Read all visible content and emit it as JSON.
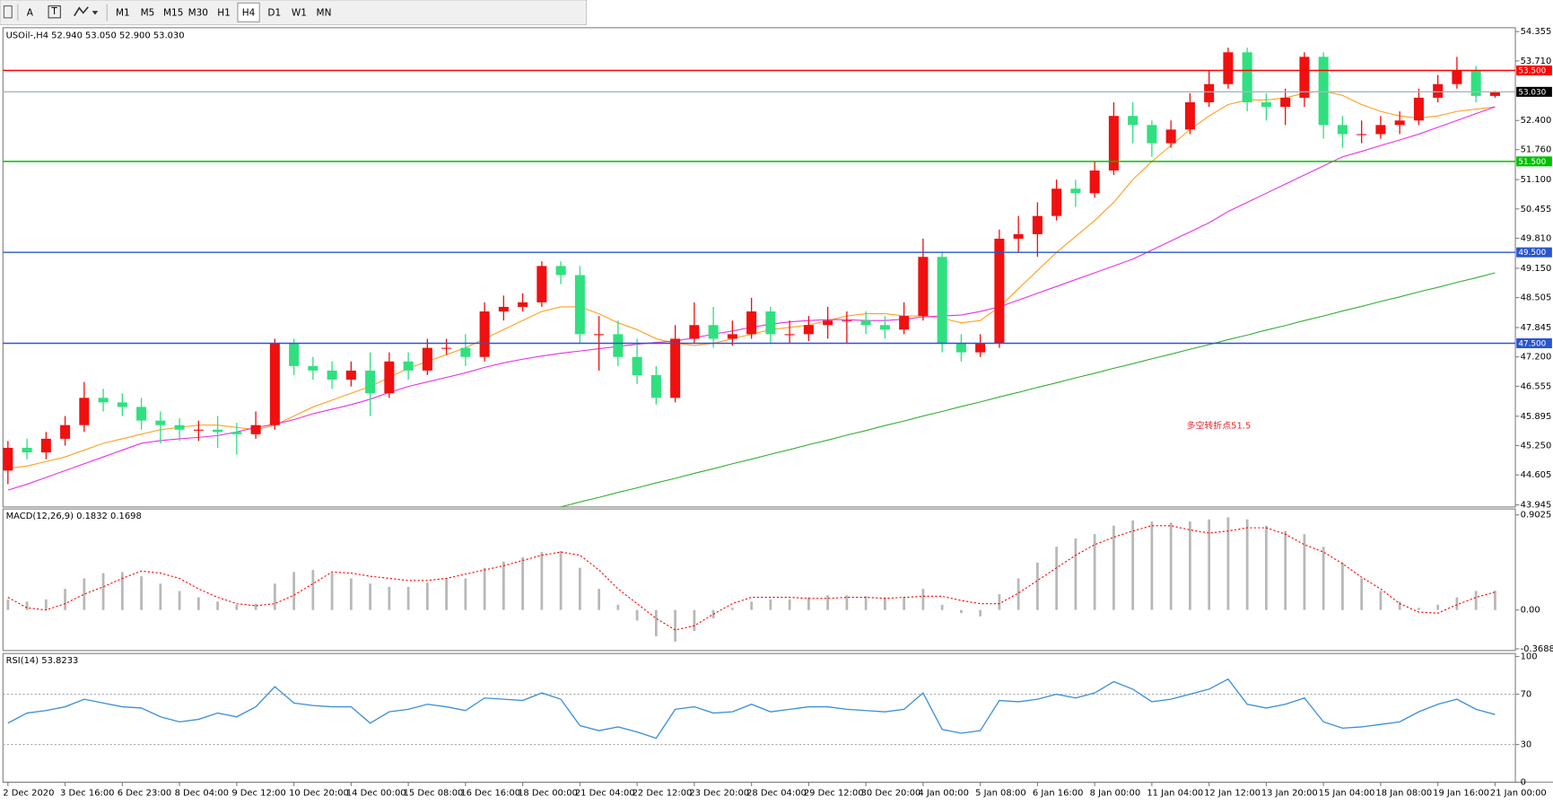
{
  "toolbar": {
    "periods": [
      "M1",
      "M5",
      "M15",
      "M30",
      "H1",
      "H4",
      "D1",
      "W1",
      "MN"
    ],
    "active": "H4"
  },
  "chart_data": {
    "type": "candlestick",
    "header": {
      "symbol": "USOil-,H4",
      "ohlc_labels": [
        "52.940",
        "53.050",
        "52.900",
        "53.030"
      ]
    },
    "categories": [
      "2 Dec 2020",
      null,
      null,
      "3 Dec 16:00",
      null,
      null,
      "6 Dec 23:00",
      null,
      null,
      "8 Dec 04:00",
      null,
      null,
      "9 Dec 12:00",
      null,
      null,
      "10 Dec 20:00",
      null,
      null,
      "14 Dec 00:00",
      null,
      null,
      "15 Dec 08:00",
      null,
      null,
      "16 Dec 16:00",
      null,
      null,
      "18 Dec 00:00",
      null,
      null,
      "21 Dec 04:00",
      null,
      null,
      "22 Dec 12:00",
      null,
      null,
      "23 Dec 20:00",
      null,
      null,
      "28 Dec 04:00",
      null,
      null,
      "29 Dec 12:00",
      null,
      null,
      "30 Dec 20:00",
      null,
      null,
      "4 Jan 00:00",
      null,
      null,
      "5 Jan 08:00",
      null,
      null,
      "6 Jan 16:00",
      null,
      null,
      "8 Jan 00:00",
      null,
      null,
      "11 Jan 04:00",
      null,
      null,
      "12 Jan 12:00",
      null,
      null,
      "13 Jan 20:00",
      null,
      null,
      "15 Jan 04:00",
      null,
      null,
      "18 Jan 08:00",
      null,
      null,
      "19 Jan 16:00",
      null,
      null,
      "21 Jan 00:00"
    ],
    "open": [
      44.7,
      45.2,
      45.1,
      45.4,
      45.7,
      46.3,
      46.2,
      46.1,
      45.8,
      45.7,
      45.6,
      45.6,
      45.55,
      45.5,
      45.7,
      47.5,
      47.0,
      46.9,
      46.7,
      46.9,
      46.4,
      47.1,
      46.9,
      47.4,
      47.4,
      47.2,
      48.2,
      48.3,
      48.4,
      49.2,
      49.0,
      47.7,
      47.7,
      47.2,
      46.8,
      46.3,
      47.6,
      47.9,
      47.6,
      47.7,
      48.2,
      47.7,
      47.7,
      47.9,
      48.0,
      48.0,
      47.9,
      47.8,
      48.1,
      49.4,
      47.5,
      47.3,
      47.5,
      49.8,
      49.9,
      50.3,
      50.9,
      50.8,
      51.3,
      52.5,
      52.3,
      51.9,
      52.2,
      52.8,
      53.2,
      53.9,
      52.8,
      52.7,
      52.9,
      53.8,
      52.3,
      52.1,
      52.1,
      52.3,
      52.4,
      52.9,
      53.2,
      53.5,
      52.94
    ],
    "high": [
      45.35,
      45.4,
      45.55,
      45.9,
      46.65,
      46.5,
      46.4,
      46.3,
      46.0,
      45.85,
      45.8,
      45.9,
      45.75,
      46.0,
      47.6,
      47.6,
      47.2,
      47.1,
      47.1,
      47.3,
      47.3,
      47.3,
      47.6,
      47.6,
      47.7,
      48.4,
      48.55,
      48.6,
      49.3,
      49.3,
      49.2,
      48.1,
      48.0,
      47.6,
      47.0,
      47.9,
      48.4,
      48.3,
      48.0,
      48.5,
      48.3,
      48.0,
      48.1,
      48.3,
      48.2,
      48.2,
      48.1,
      48.4,
      49.8,
      49.5,
      47.7,
      47.7,
      50.0,
      50.3,
      50.6,
      51.1,
      51.1,
      51.5,
      52.8,
      52.8,
      52.4,
      52.4,
      53.0,
      53.5,
      54.0,
      54.0,
      53.0,
      53.1,
      53.9,
      53.9,
      52.5,
      52.4,
      52.5,
      52.6,
      53.1,
      53.4,
      53.8,
      53.6,
      53.05
    ],
    "low": [
      44.4,
      44.95,
      44.95,
      45.25,
      45.55,
      46.0,
      45.9,
      45.6,
      45.3,
      45.35,
      45.35,
      45.2,
      45.05,
      45.4,
      45.6,
      46.8,
      46.7,
      46.5,
      46.55,
      45.9,
      46.3,
      46.7,
      46.8,
      47.25,
      47.0,
      47.1,
      48.0,
      48.2,
      48.3,
      48.8,
      47.5,
      46.9,
      47.0,
      46.6,
      46.15,
      46.2,
      47.5,
      47.4,
      47.45,
      47.6,
      47.5,
      47.5,
      47.55,
      47.6,
      47.5,
      47.7,
      47.6,
      47.7,
      48.0,
      47.3,
      47.1,
      47.2,
      47.4,
      49.5,
      49.4,
      50.2,
      50.5,
      50.7,
      51.2,
      51.9,
      51.6,
      51.8,
      52.1,
      52.7,
      53.1,
      52.6,
      52.4,
      52.3,
      52.7,
      52.0,
      51.8,
      51.9,
      52.0,
      52.1,
      52.3,
      52.8,
      53.1,
      52.8,
      52.9
    ],
    "close": [
      45.2,
      45.1,
      45.4,
      45.7,
      46.3,
      46.2,
      46.1,
      45.8,
      45.7,
      45.6,
      45.6,
      45.55,
      45.5,
      45.7,
      47.5,
      47.0,
      46.9,
      46.7,
      46.9,
      46.4,
      47.1,
      46.9,
      47.4,
      47.4,
      47.2,
      48.2,
      48.3,
      48.4,
      49.2,
      49.0,
      47.7,
      47.7,
      47.2,
      46.8,
      46.3,
      47.6,
      47.9,
      47.6,
      47.7,
      48.2,
      47.7,
      47.7,
      47.9,
      48.0,
      48.0,
      47.9,
      47.8,
      48.1,
      49.4,
      47.5,
      47.3,
      47.5,
      49.8,
      49.9,
      50.3,
      50.9,
      50.8,
      51.3,
      52.5,
      52.3,
      51.9,
      52.2,
      52.8,
      53.2,
      53.9,
      52.8,
      52.7,
      52.9,
      53.8,
      52.3,
      52.1,
      52.1,
      52.3,
      52.4,
      52.9,
      53.2,
      53.5,
      52.94,
      53.03
    ],
    "up_color": "#f01010",
    "down_color": "#30e080",
    "ylim": [
      43.9,
      54.44
    ],
    "yticks": [
      54.355,
      {
        "value": 53.71,
        "label": "53.710"
      },
      {
        "value": 52.4,
        "label": "52.400"
      },
      {
        "value": 51.76,
        "label": "51.760"
      },
      {
        "value": 51.1,
        "label": "51.100"
      },
      50.455,
      {
        "value": 49.81,
        "label": "49.810"
      },
      {
        "value": 49.15,
        "label": "49.150"
      },
      48.505,
      47.845,
      {
        "value": 47.2,
        "label": "47.200"
      },
      46.555,
      45.895,
      {
        "value": 45.25,
        "label": "45.250"
      },
      44.605,
      43.945
    ],
    "overlays": [
      {
        "color": "#ffa020",
        "values": [
          44.75,
          44.8,
          44.9,
          45.0,
          45.15,
          45.3,
          45.4,
          45.5,
          45.6,
          45.65,
          45.7,
          45.7,
          45.65,
          45.6,
          45.7,
          45.9,
          46.1,
          46.25,
          46.4,
          46.55,
          46.75,
          46.95,
          47.1,
          47.25,
          47.4,
          47.6,
          47.8,
          48.0,
          48.2,
          48.3,
          48.3,
          48.15,
          47.95,
          47.8,
          47.6,
          47.5,
          47.45,
          47.5,
          47.6,
          47.7,
          47.8,
          47.85,
          47.9,
          48.0,
          48.1,
          48.15,
          48.15,
          48.1,
          48.1,
          48.05,
          47.95,
          48.0,
          48.3,
          48.7,
          49.1,
          49.5,
          49.85,
          50.2,
          50.6,
          51.1,
          51.5,
          51.85,
          52.2,
          52.5,
          52.75,
          52.85,
          52.85,
          52.9,
          53.0,
          53.05,
          52.95,
          52.75,
          52.6,
          52.5,
          52.45,
          52.5,
          52.6,
          52.65,
          52.7
        ]
      },
      {
        "color": "#e830e8",
        "values": [
          44.27,
          44.4,
          44.55,
          44.7,
          44.85,
          45.0,
          45.15,
          45.3,
          45.36,
          45.4,
          45.43,
          45.47,
          45.55,
          45.65,
          45.72,
          45.82,
          45.95,
          46.05,
          46.15,
          46.27,
          46.42,
          46.55,
          46.65,
          46.75,
          46.85,
          46.97,
          47.07,
          47.15,
          47.22,
          47.28,
          47.33,
          47.38,
          47.43,
          47.48,
          47.52,
          47.55,
          47.62,
          47.7,
          47.77,
          47.85,
          47.92,
          47.97,
          48.0,
          48.02,
          48.02,
          48.0,
          48.0,
          48.03,
          48.08,
          48.1,
          48.12,
          48.2,
          48.3,
          48.45,
          48.6,
          48.75,
          48.9,
          49.05,
          49.2,
          49.35,
          49.55,
          49.75,
          49.95,
          50.15,
          50.4,
          50.6,
          50.8,
          51.0,
          51.2,
          51.4,
          51.6,
          51.72,
          51.85,
          51.97,
          52.1,
          52.25,
          52.4,
          52.55,
          52.7
        ]
      },
      {
        "color": "#30b030",
        "values": [
          null,
          null,
          null,
          null,
          null,
          null,
          null,
          null,
          null,
          null,
          null,
          null,
          null,
          null,
          null,
          null,
          null,
          null,
          null,
          null,
          null,
          null,
          null,
          null,
          null,
          null,
          null,
          null,
          null,
          43.9,
          44.01,
          44.11,
          44.22,
          44.32,
          44.43,
          44.53,
          44.64,
          44.74,
          44.85,
          44.95,
          45.06,
          45.16,
          45.27,
          45.37,
          45.48,
          45.58,
          45.69,
          45.79,
          45.9,
          46.0,
          46.11,
          46.21,
          46.32,
          46.42,
          46.53,
          46.63,
          46.74,
          46.84,
          46.95,
          47.05,
          47.16,
          47.26,
          47.37,
          47.47,
          47.58,
          47.68,
          47.79,
          47.89,
          48.0,
          48.1,
          48.21,
          48.31,
          48.42,
          48.52,
          48.63,
          48.73,
          48.84,
          48.94,
          49.05
        ]
      }
    ],
    "levels": [
      {
        "value": 53.5,
        "label": "53.500",
        "color": "#ff0000",
        "box_color": "#ff0000"
      },
      {
        "value": 53.03,
        "label": "53.030",
        "color": "#a8b4c0",
        "box_color": "#000000"
      },
      {
        "value": 51.5,
        "label": "51.500",
        "color": "#00c000",
        "box_color": "#00c000"
      },
      {
        "value": 49.5,
        "label": "49.500",
        "color": "#2a55d0",
        "box_color": "#2a55d0"
      },
      {
        "value": 47.5,
        "label": "47.500",
        "color": "#2a55d0",
        "box_color": "#2a55d0"
      }
    ],
    "annotation": {
      "text": "多空转折点51.5",
      "color": "#e82028"
    },
    "macd": {
      "type": "bar",
      "title": "MACD(12,26,9)",
      "histogram": {
        "color": "#b8b8b8",
        "values": [
          0.1,
          0.08,
          0.1,
          0.2,
          0.3,
          0.35,
          0.36,
          0.32,
          0.25,
          0.18,
          0.12,
          0.08,
          0.05,
          0.06,
          0.25,
          0.36,
          0.38,
          0.35,
          0.3,
          0.25,
          0.22,
          0.22,
          0.26,
          0.3,
          0.3,
          0.4,
          0.46,
          0.5,
          0.55,
          0.56,
          0.4,
          0.2,
          0.05,
          -0.1,
          -0.25,
          -0.3,
          -0.2,
          -0.08,
          0.02,
          0.08,
          0.1,
          0.1,
          0.12,
          0.14,
          0.14,
          0.13,
          0.12,
          0.12,
          0.2,
          0.05,
          -0.03,
          -0.06,
          0.15,
          0.3,
          0.45,
          0.6,
          0.68,
          0.72,
          0.8,
          0.85,
          0.84,
          0.83,
          0.84,
          0.86,
          0.88,
          0.86,
          0.8,
          0.75,
          0.72,
          0.6,
          0.45,
          0.3,
          0.18,
          0.08,
          0.02,
          0.05,
          0.12,
          0.18,
          0.1832
        ]
      },
      "signal": {
        "color": "#ff0000",
        "values": [
          0.12,
          0.02,
          0.0,
          0.06,
          0.15,
          0.22,
          0.3,
          0.37,
          0.35,
          0.3,
          0.2,
          0.12,
          0.06,
          0.04,
          0.06,
          0.14,
          0.25,
          0.36,
          0.35,
          0.32,
          0.3,
          0.28,
          0.28,
          0.3,
          0.34,
          0.38,
          0.42,
          0.47,
          0.52,
          0.55,
          0.52,
          0.38,
          0.2,
          0.06,
          -0.08,
          -0.19,
          -0.15,
          -0.04,
          0.06,
          0.12,
          0.12,
          0.12,
          0.11,
          0.11,
          0.12,
          0.12,
          0.11,
          0.12,
          0.13,
          0.13,
          0.09,
          0.06,
          0.06,
          0.16,
          0.28,
          0.4,
          0.52,
          0.62,
          0.69,
          0.75,
          0.8,
          0.8,
          0.76,
          0.73,
          0.75,
          0.78,
          0.78,
          0.72,
          0.62,
          0.55,
          0.44,
          0.31,
          0.2,
          0.06,
          -0.02,
          -0.03,
          0.05,
          0.12,
          0.1698
        ]
      },
      "ylim": [
        -0.385,
        0.959
      ],
      "yticks": [
        0.9025,
        {
          "value": 0,
          "label": "0.00"
        },
        -0.3688
      ]
    },
    "rsi": {
      "type": "line",
      "title": "RSI(14)",
      "color": "#3b8fd9",
      "values": [
        47,
        55,
        57,
        60,
        66,
        63,
        60,
        59,
        52,
        48,
        50,
        55,
        52,
        60,
        76,
        63,
        61,
        60,
        60,
        47,
        56,
        58,
        62,
        60,
        57,
        67,
        66,
        65,
        71,
        66,
        45,
        41,
        44,
        40,
        35,
        58,
        60,
        55,
        56,
        62,
        56,
        58,
        60,
        60,
        58,
        57,
        56,
        58,
        71,
        42,
        39,
        41,
        65,
        64,
        66,
        70,
        67,
        71,
        80,
        74,
        64,
        66,
        70,
        74,
        82,
        62,
        59,
        62,
        67,
        48,
        43,
        44,
        46,
        48,
        56,
        62,
        66,
        58,
        53.8233
      ],
      "ylim": [
        0,
        100
      ],
      "yticks": [
        100,
        70,
        30,
        0
      ],
      "dotted_levels": [
        70,
        30
      ]
    }
  }
}
